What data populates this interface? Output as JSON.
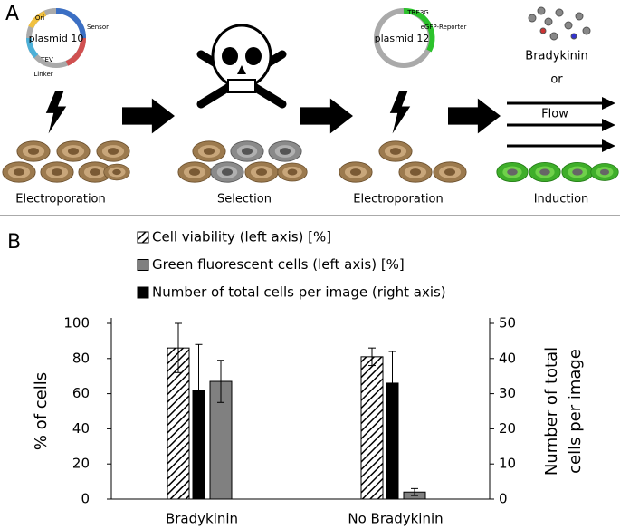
{
  "panel_a": {
    "label": "A",
    "steps": [
      "Electroporation",
      "Selection",
      "Electroporation",
      "Induction"
    ],
    "plasmid_1": {
      "name": "plasmid 10",
      "parts": [
        "Sensor",
        "Linker",
        "TEV",
        "Ori"
      ]
    },
    "plasmid_2": {
      "name": "plasmid 12",
      "parts": [
        "eGFP-Reporter",
        "TRE3G"
      ]
    },
    "stimulus": "Bradykinin",
    "or": "or",
    "flow": "Flow"
  },
  "panel_b": {
    "label": "B"
  },
  "chart_data": {
    "type": "bar",
    "categories": [
      "Bradykinin",
      "No Bradykinin"
    ],
    "series": [
      {
        "name": "Cell viability (left axis) [%]",
        "color": "#000000",
        "hatched": true,
        "values": [
          86,
          81
        ],
        "error": [
          14,
          5
        ]
      },
      {
        "name": "Number of total cells per image (right axis)",
        "color": "#000000",
        "hatched": false,
        "axis": "y2",
        "values": [
          31,
          33
        ],
        "error": [
          13,
          9
        ]
      },
      {
        "name": "Green fluorescent cells (left axis) [%]",
        "color": "#808080",
        "hatched": false,
        "values": [
          67,
          4
        ],
        "error": [
          12,
          2
        ]
      }
    ],
    "legend_order": [
      0,
      2,
      1
    ],
    "ylabel": "% of cells",
    "y2label": [
      "Number of total",
      "cells per image"
    ],
    "ylim": [
      0,
      100
    ],
    "yticks": [
      0,
      20,
      40,
      60,
      80,
      100
    ],
    "y2lim": [
      0,
      50
    ],
    "y2ticks": [
      0,
      10,
      20,
      30,
      40,
      50
    ]
  }
}
